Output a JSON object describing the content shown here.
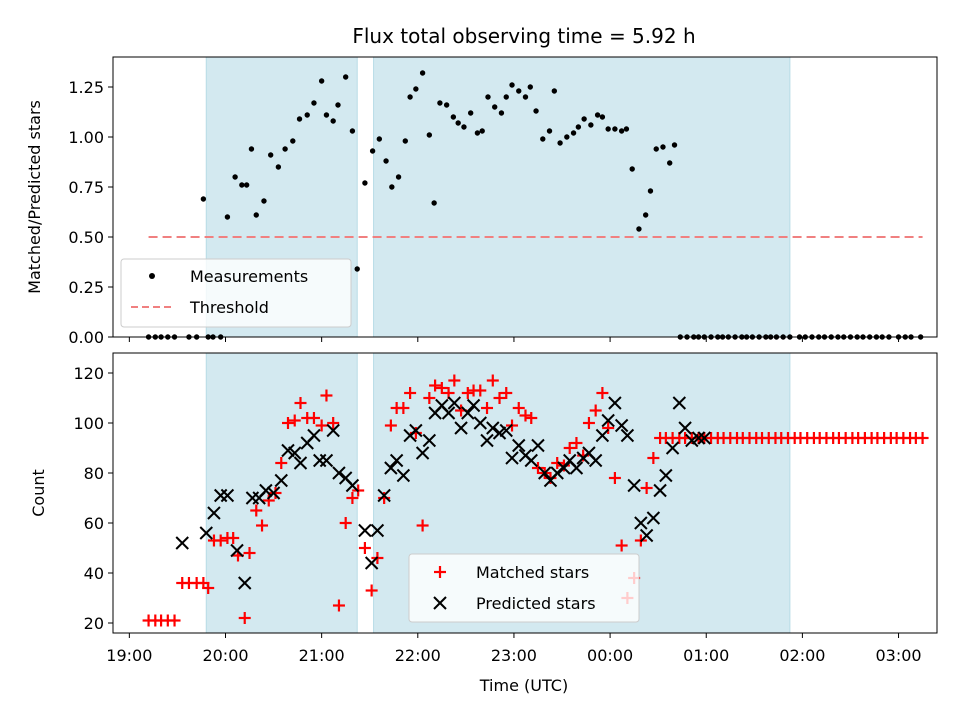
{
  "chart_data": {
    "type": "scatter",
    "title": "Flux total observing time = 5.92 h",
    "xlabel": "Time (UTC)",
    "x_unit": "hours after 19:00 UTC",
    "xlim": [
      -0.17,
      8.4
    ],
    "x_ticks": [
      {
        "value": 0,
        "label": "19:00"
      },
      {
        "value": 1,
        "label": "20:00"
      },
      {
        "value": 2,
        "label": "21:00"
      },
      {
        "value": 3,
        "label": "22:00"
      },
      {
        "value": 4,
        "label": "23:00"
      },
      {
        "value": 5,
        "label": "00:00"
      },
      {
        "value": 6,
        "label": "01:00"
      },
      {
        "value": 7,
        "label": "02:00"
      },
      {
        "value": 8,
        "label": "03:00"
      }
    ],
    "shaded_intervals": [
      [
        0.8,
        2.37
      ],
      [
        2.54,
        6.87
      ]
    ],
    "shade_color": "#d3e9f0",
    "top": {
      "ylabel": "Matched/Predicted stars",
      "ylim": [
        0,
        1.4
      ],
      "y_ticks": [
        "0.00",
        "0.25",
        "0.50",
        "0.75",
        "1.00",
        "1.25"
      ],
      "threshold": {
        "name": "Threshold",
        "y": 0.5,
        "x_range": [
          0.2,
          8.25
        ],
        "color": "#f08080"
      },
      "measurements": {
        "name": "Measurements",
        "color": "#000000",
        "x": [
          0.2,
          0.27,
          0.33,
          0.4,
          0.47,
          0.62,
          0.7,
          0.77,
          0.82,
          0.87,
          0.95,
          1.02,
          1.1,
          1.17,
          1.22,
          1.27,
          1.32,
          1.4,
          1.47,
          1.55,
          1.62,
          1.7,
          1.77,
          1.85,
          1.92,
          2.0,
          2.05,
          2.12,
          2.17,
          2.25,
          2.32,
          2.37,
          2.45,
          2.53,
          2.6,
          2.67,
          2.73,
          2.8,
          2.87,
          2.92,
          2.98,
          3.05,
          3.12,
          3.17,
          3.23,
          3.3,
          3.37,
          3.42,
          3.48,
          3.55,
          3.62,
          3.67,
          3.73,
          3.8,
          3.87,
          3.92,
          3.98,
          4.05,
          4.12,
          4.17,
          4.23,
          4.3,
          4.37,
          4.42,
          4.48,
          4.55,
          4.62,
          4.67,
          4.73,
          4.8,
          4.87,
          4.92,
          4.98,
          5.05,
          5.12,
          5.17,
          5.23,
          5.3,
          5.37,
          5.42,
          5.48,
          5.55,
          5.62,
          5.67,
          5.73,
          5.8,
          5.87,
          5.92,
          5.98,
          6.05,
          6.12,
          6.17,
          6.23,
          6.3,
          6.37,
          6.42,
          6.48,
          6.55,
          6.62,
          6.67,
          6.73,
          6.8,
          6.87,
          6.97,
          7.03,
          7.1,
          7.17,
          7.23,
          7.3,
          7.37,
          7.43,
          7.5,
          7.57,
          7.63,
          7.7,
          7.77,
          7.83,
          7.9,
          8.0,
          8.07,
          8.13,
          8.23
        ],
        "y": [
          0.0,
          0.0,
          0.0,
          0.0,
          0.0,
          0.0,
          0.0,
          0.69,
          0.0,
          0.0,
          0.0,
          0.6,
          0.8,
          0.76,
          0.76,
          0.94,
          0.61,
          0.68,
          0.91,
          0.85,
          0.94,
          0.98,
          1.09,
          1.11,
          1.17,
          1.28,
          1.11,
          1.08,
          1.16,
          1.3,
          1.03,
          0.34,
          0.77,
          0.93,
          0.99,
          0.88,
          0.75,
          0.8,
          0.98,
          1.2,
          1.24,
          1.32,
          1.01,
          0.67,
          1.17,
          1.16,
          1.1,
          1.07,
          1.05,
          1.12,
          1.02,
          1.03,
          1.2,
          1.15,
          1.12,
          1.2,
          1.26,
          1.23,
          1.2,
          1.25,
          1.13,
          0.99,
          1.03,
          1.23,
          0.97,
          1.0,
          1.02,
          1.05,
          1.09,
          1.06,
          1.11,
          1.1,
          1.04,
          1.04,
          1.03,
          1.04,
          0.84,
          0.54,
          0.61,
          0.73,
          0.94,
          0.95,
          0.87,
          0.96,
          0.0,
          0.0,
          0.0,
          0.0,
          0.0,
          0.0,
          0.0,
          0.0,
          0.0,
          0.0,
          0.0,
          0.0,
          0.0,
          0.0,
          0.0,
          0.0,
          0.0,
          0.0,
          0.0,
          0.0,
          0.0,
          0.0,
          0.0,
          0.0,
          0.0,
          0.0,
          0.0,
          0.0,
          0.0,
          0.0,
          0.0,
          0.0,
          0.0,
          0.0,
          0.0,
          0.0,
          0.0,
          0.0
        ]
      }
    },
    "bottom": {
      "ylabel": "Count",
      "ylim": [
        16,
        128
      ],
      "y_ticks": [
        "20",
        "40",
        "60",
        "80",
        "100",
        "120"
      ],
      "matched": {
        "name": "Matched stars",
        "color": "#ff0000",
        "x": [
          0.2,
          0.27,
          0.33,
          0.4,
          0.47,
          0.55,
          0.62,
          0.7,
          0.77,
          0.82,
          0.88,
          0.95,
          1.02,
          1.08,
          1.13,
          1.2,
          1.25,
          1.32,
          1.38,
          1.45,
          1.52,
          1.58,
          1.65,
          1.72,
          1.78,
          1.85,
          1.92,
          2.0,
          2.05,
          2.12,
          2.18,
          2.25,
          2.32,
          2.38,
          2.45,
          2.52,
          2.58,
          2.65,
          2.72,
          2.78,
          2.85,
          2.92,
          2.98,
          3.05,
          3.12,
          3.18,
          3.25,
          3.32,
          3.38,
          3.45,
          3.52,
          3.58,
          3.65,
          3.72,
          3.78,
          3.85,
          3.92,
          3.98,
          4.05,
          4.12,
          4.18,
          4.25,
          4.32,
          4.38,
          4.45,
          4.52,
          4.58,
          4.65,
          4.72,
          4.78,
          4.85,
          4.92,
          4.98,
          5.05,
          5.12,
          5.18,
          5.25,
          5.32,
          5.38,
          5.45,
          5.52,
          5.58,
          5.65,
          5.72,
          5.78,
          5.85,
          5.92,
          5.98,
          6.05,
          6.12,
          6.18,
          6.25,
          6.32,
          6.38,
          6.45,
          6.52,
          6.58,
          6.65,
          6.72,
          6.78,
          6.85,
          6.92,
          6.98,
          7.05,
          7.12,
          7.18,
          7.25,
          7.32,
          7.38,
          7.45,
          7.52,
          7.58,
          7.65,
          7.72,
          7.78,
          7.85,
          7.92,
          7.98,
          8.05,
          8.12,
          8.18,
          8.25
        ],
        "y": [
          21,
          21,
          21,
          21,
          21,
          36,
          36,
          36,
          36,
          34,
          53,
          53,
          54,
          54,
          47,
          22,
          48,
          65,
          59,
          69,
          72,
          84,
          100,
          101,
          108,
          102,
          102,
          99,
          111,
          100,
          27,
          60,
          70,
          73,
          50,
          33,
          46,
          70,
          99,
          106,
          106,
          112,
          96,
          59,
          110,
          115,
          114,
          112,
          117,
          105,
          112,
          113,
          113,
          106,
          117,
          110,
          112,
          99,
          106,
          103,
          102,
          82,
          80,
          78,
          84,
          83,
          90,
          92,
          87,
          100,
          105,
          112,
          98,
          78,
          51,
          30,
          38,
          53,
          74,
          86,
          94,
          94,
          94,
          94,
          94,
          94,
          94,
          94,
          94,
          94,
          94,
          94,
          94,
          94,
          94,
          94,
          94,
          94,
          94,
          94,
          94,
          94,
          94,
          94,
          94,
          94,
          94,
          94,
          94,
          94,
          94,
          94,
          94,
          94,
          94,
          94,
          94,
          94,
          94,
          94,
          94,
          94
        ]
      },
      "predicted": {
        "name": "Predicted stars",
        "color": "#000000",
        "x": [
          0.55,
          0.8,
          0.88,
          0.95,
          1.02,
          1.12,
          1.2,
          1.28,
          1.35,
          1.42,
          1.5,
          1.58,
          1.65,
          1.72,
          1.78,
          1.85,
          1.92,
          1.98,
          2.05,
          2.12,
          2.18,
          2.25,
          2.32,
          2.45,
          2.52,
          2.58,
          2.65,
          2.72,
          2.78,
          2.85,
          2.92,
          2.98,
          3.05,
          3.12,
          3.18,
          3.25,
          3.32,
          3.38,
          3.45,
          3.52,
          3.58,
          3.65,
          3.72,
          3.78,
          3.85,
          3.92,
          3.98,
          4.05,
          4.12,
          4.18,
          4.25,
          4.32,
          4.38,
          4.45,
          4.52,
          4.58,
          4.65,
          4.72,
          4.78,
          4.85,
          4.92,
          4.98,
          5.05,
          5.12,
          5.18,
          5.25,
          5.32,
          5.38,
          5.45,
          5.52,
          5.58,
          5.65,
          5.72,
          5.78,
          5.85,
          5.92,
          5.98
        ],
        "y": [
          52,
          56,
          64,
          71,
          71,
          49,
          36,
          70,
          70,
          73,
          72,
          77,
          89,
          88,
          84,
          92,
          95,
          85,
          85,
          97,
          80,
          78,
          75,
          57,
          44,
          57,
          71,
          82,
          85,
          79,
          95,
          97,
          88,
          93,
          104,
          107,
          104,
          108,
          98,
          104,
          107,
          100,
          93,
          98,
          96,
          97,
          86,
          91,
          87,
          85,
          91,
          80,
          77,
          80,
          82,
          85,
          82,
          86,
          88,
          85,
          95,
          101,
          108,
          99,
          95,
          75,
          60,
          55,
          62,
          73,
          79,
          90,
          108,
          98,
          93,
          94,
          94
        ]
      }
    },
    "legends": {
      "top": {
        "placement": "lower-left",
        "entries": [
          "Measurements",
          "Threshold"
        ]
      },
      "bottom": {
        "placement": "lower-center",
        "entries": [
          "Matched stars",
          "Predicted stars"
        ]
      }
    }
  }
}
